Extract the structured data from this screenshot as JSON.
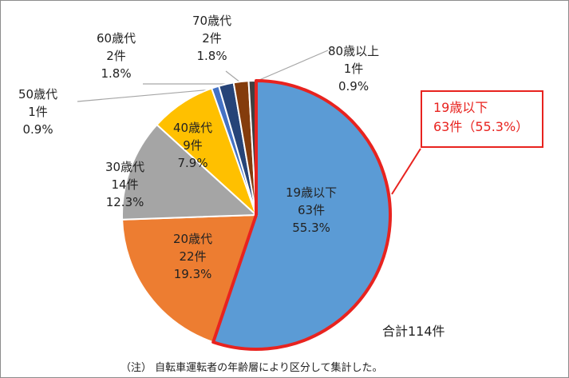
{
  "chart_data": {
    "type": "pie",
    "slices": [
      {
        "label": "19歳以下",
        "count": "63件",
        "percent": "55.3%",
        "value": 55.3,
        "color": "#5b9bd5"
      },
      {
        "label": "20歳代",
        "count": "22件",
        "percent": "19.3%",
        "value": 19.3,
        "color": "#ed7d31"
      },
      {
        "label": "30歳代",
        "count": "14件",
        "percent": "12.3%",
        "value": 12.3,
        "color": "#a5a5a5"
      },
      {
        "label": "40歳代",
        "count": "9件",
        "percent": "7.9%",
        "value": 7.9,
        "color": "#ffc000"
      },
      {
        "label": "50歳代",
        "count": "1件",
        "percent": "0.9%",
        "value": 0.9,
        "color": "#4472c4"
      },
      {
        "label": "60歳代",
        "count": "2件",
        "percent": "1.8%",
        "value": 1.8,
        "color": "#264478"
      },
      {
        "label": "70歳代",
        "count": "2件",
        "percent": "1.8%",
        "value": 1.8,
        "color": "#843c0c"
      },
      {
        "label": "80歳以上",
        "count": "1件",
        "percent": "0.9%",
        "value": 0.9,
        "color": "#404040"
      }
    ],
    "highlight_color": "#e8231f",
    "callout": {
      "line1": "19歳以下",
      "line2": "63件（55.3%）"
    },
    "total": "合計114件",
    "note": "（注） 自転車運転者の年齢層により区分して集計した。"
  }
}
